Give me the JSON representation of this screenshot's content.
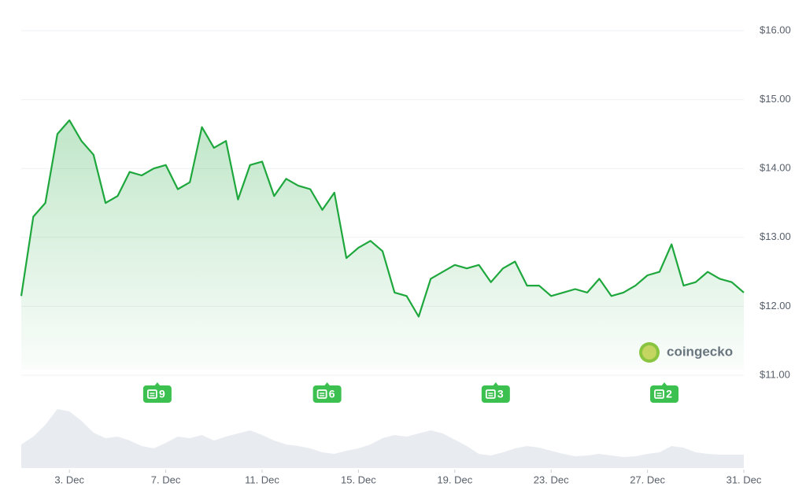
{
  "chart_data": {
    "type": "line",
    "color": "#1ea73c",
    "grid": true,
    "x": [
      1,
      1.5,
      2,
      2.5,
      3,
      3.5,
      4,
      4.5,
      5,
      5.5,
      6,
      6.5,
      7,
      7.5,
      8,
      8.5,
      9,
      9.5,
      10,
      10.5,
      11,
      11.5,
      12,
      12.5,
      13,
      13.5,
      14,
      14.5,
      15,
      15.5,
      16,
      16.5,
      17,
      17.5,
      18,
      18.5,
      19,
      19.5,
      20,
      20.5,
      21,
      21.5,
      22,
      22.5,
      23,
      23.5,
      24,
      24.5,
      25,
      25.5,
      26,
      26.5,
      27,
      27.5,
      28,
      28.5,
      29,
      29.5,
      30,
      30.5,
      31
    ],
    "values": [
      12.15,
      13.3,
      13.5,
      14.5,
      14.7,
      14.4,
      14.2,
      13.5,
      13.6,
      13.95,
      13.9,
      14.0,
      14.05,
      13.7,
      13.8,
      14.6,
      14.3,
      14.4,
      13.55,
      14.05,
      14.1,
      13.6,
      13.85,
      13.75,
      13.7,
      13.4,
      13.65,
      12.7,
      12.85,
      12.95,
      12.8,
      12.2,
      12.15,
      11.85,
      12.4,
      12.5,
      12.6,
      12.55,
      12.6,
      12.35,
      12.55,
      12.65,
      12.3,
      12.3,
      12.15,
      12.2,
      12.25,
      12.2,
      12.4,
      12.15,
      12.2,
      12.3,
      12.45,
      12.5,
      12.9,
      12.3,
      12.35,
      12.5,
      12.4,
      12.35,
      12.2
    ],
    "volume": {
      "color": "#e8ecf1",
      "values": [
        30,
        40,
        55,
        75,
        72,
        60,
        45,
        38,
        40,
        35,
        28,
        25,
        32,
        40,
        38,
        42,
        35,
        40,
        44,
        48,
        42,
        35,
        30,
        28,
        25,
        20,
        18,
        22,
        25,
        30,
        38,
        42,
        40,
        44,
        48,
        44,
        36,
        28,
        18,
        16,
        20,
        25,
        28,
        26,
        22,
        18,
        15,
        16,
        18,
        16,
        14,
        15,
        18,
        20,
        28,
        26,
        20,
        18,
        17,
        17,
        17
      ]
    },
    "xlim": [
      1,
      31
    ],
    "xticks": [
      {
        "value": 3,
        "label": "3. Dec"
      },
      {
        "value": 7,
        "label": "7. Dec"
      },
      {
        "value": 11,
        "label": "11. Dec"
      },
      {
        "value": 15,
        "label": "15. Dec"
      },
      {
        "value": 19,
        "label": "19. Dec"
      },
      {
        "value": 23,
        "label": "23. Dec"
      },
      {
        "value": 27,
        "label": "27. Dec"
      },
      {
        "value": 31,
        "label": "31. Dec"
      }
    ],
    "ylim": [
      11,
      16
    ],
    "yticks": [
      {
        "value": 11,
        "label": "$11.00"
      },
      {
        "value": 12,
        "label": "$12.00"
      },
      {
        "value": 13,
        "label": "$13.00"
      },
      {
        "value": 14,
        "label": "$14.00"
      },
      {
        "value": 15,
        "label": "$15.00"
      },
      {
        "value": 16,
        "label": "$16.00"
      }
    ],
    "news": [
      {
        "x": 6.65,
        "count": 9
      },
      {
        "x": 13.7,
        "count": 6
      },
      {
        "x": 20.7,
        "count": 3
      },
      {
        "x": 27.7,
        "count": 2
      }
    ],
    "watermark": "coingecko"
  }
}
